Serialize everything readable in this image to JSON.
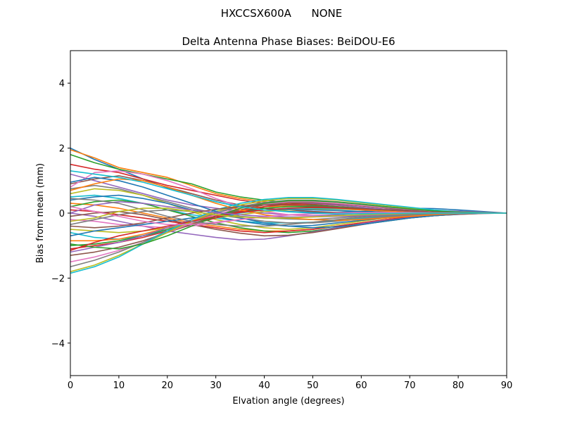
{
  "figure": {
    "suptitle": "HXCCSX600A      NONE"
  },
  "chart_data": {
    "type": "line",
    "title": "Delta Antenna Phase Biases: BeiDOU-E6",
    "xlabel": "Elvation angle (degrees)",
    "ylabel": "Bias from mean (mm)",
    "xlim": [
      0,
      90
    ],
    "ylim": [
      -5,
      5
    ],
    "xticks": [
      0,
      10,
      20,
      30,
      40,
      50,
      60,
      70,
      80,
      90
    ],
    "xtick_labels": [
      "0",
      "10",
      "20",
      "30",
      "40",
      "50",
      "60",
      "70",
      "80",
      "90"
    ],
    "yticks": [
      -4,
      -2,
      0,
      2,
      4
    ],
    "ytick_labels": [
      "−4",
      "−2",
      "0",
      "2",
      "4"
    ],
    "grid": false,
    "legend": "none",
    "colors": [
      "#1f77b4",
      "#ff7f0e",
      "#2ca02c",
      "#d62728",
      "#9467bd",
      "#8c564b",
      "#e377c2",
      "#7f7f7f",
      "#bcbd22",
      "#17becf"
    ],
    "x": [
      0,
      5,
      10,
      15,
      20,
      25,
      30,
      35,
      40,
      45,
      50,
      55,
      60,
      65,
      70,
      75,
      80,
      85,
      90
    ],
    "series": [
      {
        "values": [
          2.0,
          1.65,
          1.35,
          1.05,
          0.78,
          0.55,
          0.35,
          0.2,
          0.1,
          0.05,
          0.02,
          0.02,
          0.05,
          0.1,
          0.15,
          0.14,
          0.1,
          0.05,
          0.0
        ]
      },
      {
        "values": [
          1.95,
          1.7,
          1.4,
          1.25,
          1.1,
          0.85,
          0.6,
          0.45,
          0.35,
          0.28,
          0.22,
          0.18,
          0.15,
          0.12,
          0.1,
          0.08,
          0.05,
          0.02,
          0.0
        ]
      },
      {
        "values": [
          1.8,
          1.55,
          1.35,
          1.2,
          1.05,
          0.9,
          0.65,
          0.5,
          0.4,
          0.32,
          0.25,
          0.2,
          0.15,
          0.12,
          0.1,
          0.08,
          0.05,
          0.02,
          0.0
        ]
      },
      {
        "values": [
          1.5,
          1.35,
          1.25,
          1.05,
          0.85,
          0.7,
          0.55,
          0.4,
          0.3,
          0.25,
          0.2,
          0.15,
          0.12,
          0.1,
          0.08,
          0.06,
          0.04,
          0.02,
          0.0
        ]
      },
      {
        "values": [
          1.2,
          1.0,
          0.8,
          0.6,
          0.4,
          0.25,
          0.15,
          0.05,
          0.0,
          -0.05,
          -0.08,
          -0.05,
          0.0,
          0.05,
          0.08,
          0.08,
          0.06,
          0.03,
          0.0
        ]
      },
      {
        "values": [
          0.9,
          1.05,
          1.15,
          1.0,
          0.8,
          0.6,
          0.4,
          0.25,
          0.15,
          0.1,
          0.05,
          0.02,
          0.0,
          0.02,
          0.05,
          0.05,
          0.04,
          0.02,
          0.0
        ]
      },
      {
        "values": [
          0.8,
          1.25,
          1.3,
          1.2,
          1.0,
          0.75,
          0.45,
          0.2,
          0.05,
          -0.05,
          -0.1,
          -0.1,
          -0.08,
          -0.05,
          -0.02,
          0.0,
          0.0,
          0.0,
          0.0
        ]
      },
      {
        "values": [
          0.75,
          0.85,
          0.75,
          0.55,
          0.35,
          0.15,
          0.0,
          -0.1,
          -0.15,
          -0.18,
          -0.2,
          -0.15,
          -0.1,
          -0.05,
          0.0,
          0.02,
          0.02,
          0.01,
          0.0
        ]
      },
      {
        "values": [
          0.6,
          0.75,
          0.7,
          0.55,
          0.3,
          0.05,
          -0.2,
          -0.35,
          -0.45,
          -0.5,
          -0.45,
          -0.35,
          -0.25,
          -0.15,
          -0.08,
          -0.04,
          -0.02,
          0.0,
          0.0
        ]
      },
      {
        "values": [
          0.5,
          0.55,
          0.45,
          0.3,
          0.1,
          -0.05,
          -0.15,
          -0.25,
          -0.3,
          -0.3,
          -0.28,
          -0.22,
          -0.15,
          -0.1,
          -0.05,
          -0.02,
          0.0,
          0.0,
          0.0
        ]
      },
      {
        "values": [
          0.4,
          0.5,
          0.55,
          0.45,
          0.3,
          0.1,
          -0.1,
          -0.25,
          -0.35,
          -0.4,
          -0.38,
          -0.3,
          -0.22,
          -0.15,
          -0.1,
          -0.05,
          -0.02,
          0.0,
          0.0
        ]
      },
      {
        "values": [
          0.3,
          0.25,
          0.15,
          0.0,
          -0.15,
          -0.3,
          -0.4,
          -0.5,
          -0.55,
          -0.55,
          -0.5,
          -0.4,
          -0.3,
          -0.2,
          -0.12,
          -0.06,
          -0.03,
          0.0,
          0.0
        ]
      },
      {
        "values": [
          0.2,
          0.35,
          0.4,
          0.3,
          0.1,
          -0.1,
          -0.3,
          -0.45,
          -0.55,
          -0.6,
          -0.55,
          -0.45,
          -0.35,
          -0.25,
          -0.15,
          -0.08,
          -0.03,
          0.0,
          0.0
        ]
      },
      {
        "values": [
          0.1,
          0.05,
          -0.05,
          -0.15,
          -0.25,
          -0.35,
          -0.45,
          -0.55,
          -0.6,
          -0.55,
          -0.5,
          -0.4,
          -0.3,
          -0.2,
          -0.12,
          -0.06,
          -0.02,
          0.0,
          0.0
        ]
      },
      {
        "values": [
          0.0,
          -0.1,
          -0.25,
          -0.4,
          -0.55,
          -0.65,
          -0.75,
          -0.82,
          -0.8,
          -0.7,
          -0.58,
          -0.45,
          -0.33,
          -0.22,
          -0.14,
          -0.08,
          -0.04,
          -0.01,
          0.0
        ]
      },
      {
        "values": [
          -0.1,
          0.0,
          0.05,
          -0.05,
          -0.2,
          -0.35,
          -0.5,
          -0.62,
          -0.7,
          -0.68,
          -0.6,
          -0.48,
          -0.36,
          -0.24,
          -0.15,
          -0.08,
          -0.04,
          -0.01,
          0.0
        ]
      },
      {
        "values": [
          -0.2,
          -0.25,
          -0.35,
          -0.4,
          -0.45,
          -0.4,
          -0.3,
          -0.2,
          -0.1,
          -0.05,
          -0.02,
          0.0,
          0.02,
          0.03,
          0.03,
          0.02,
          0.01,
          0.0,
          0.0
        ]
      },
      {
        "values": [
          -0.35,
          -0.2,
          -0.05,
          0.05,
          0.1,
          0.05,
          -0.05,
          -0.15,
          -0.25,
          -0.3,
          -0.3,
          -0.25,
          -0.18,
          -0.12,
          -0.07,
          -0.04,
          -0.02,
          0.0,
          0.0
        ]
      },
      {
        "values": [
          -0.5,
          -0.55,
          -0.6,
          -0.55,
          -0.45,
          -0.3,
          -0.15,
          -0.05,
          0.05,
          0.1,
          0.12,
          0.12,
          0.1,
          0.08,
          0.05,
          0.03,
          0.01,
          0.0,
          0.0
        ]
      },
      {
        "values": [
          -0.6,
          -0.75,
          -0.8,
          -0.7,
          -0.55,
          -0.35,
          -0.15,
          0.0,
          0.1,
          0.15,
          0.15,
          0.13,
          0.1,
          0.08,
          0.06,
          0.04,
          0.02,
          0.01,
          0.0
        ]
      },
      {
        "values": [
          -0.7,
          -0.55,
          -0.45,
          -0.35,
          -0.25,
          -0.15,
          -0.05,
          0.05,
          0.1,
          0.12,
          0.1,
          0.08,
          0.05,
          0.03,
          0.01,
          0.0,
          0.0,
          0.0,
          0.0
        ]
      },
      {
        "values": [
          -0.85,
          -0.85,
          -0.8,
          -0.65,
          -0.45,
          -0.25,
          -0.05,
          0.1,
          0.2,
          0.22,
          0.2,
          0.15,
          0.1,
          0.06,
          0.03,
          0.01,
          0.0,
          0.0,
          0.0
        ]
      },
      {
        "values": [
          -1.0,
          -0.95,
          -0.85,
          -0.7,
          -0.5,
          -0.3,
          -0.1,
          0.05,
          0.15,
          0.2,
          0.2,
          0.18,
          0.14,
          0.1,
          0.06,
          0.03,
          0.01,
          0.0,
          0.0
        ]
      },
      {
        "values": [
          -1.1,
          -1.0,
          -0.9,
          -0.75,
          -0.55,
          -0.35,
          -0.15,
          0.05,
          0.2,
          0.28,
          0.28,
          0.24,
          0.18,
          0.12,
          0.07,
          0.04,
          0.02,
          0.0,
          0.0
        ]
      },
      {
        "values": [
          -1.2,
          -1.05,
          -0.9,
          -0.7,
          -0.45,
          -0.2,
          0.05,
          0.2,
          0.3,
          0.33,
          0.3,
          0.25,
          0.18,
          0.12,
          0.07,
          0.04,
          0.02,
          0.0,
          0.0
        ]
      },
      {
        "values": [
          -1.3,
          -1.2,
          -1.05,
          -0.85,
          -0.6,
          -0.35,
          -0.1,
          0.1,
          0.25,
          0.32,
          0.32,
          0.28,
          0.22,
          0.16,
          0.1,
          0.05,
          0.02,
          0.0,
          0.0
        ]
      },
      {
        "values": [
          -1.5,
          -1.35,
          -1.15,
          -0.9,
          -0.6,
          -0.3,
          -0.05,
          0.15,
          0.28,
          0.35,
          0.35,
          0.3,
          0.24,
          0.18,
          0.12,
          0.06,
          0.02,
          0.0,
          0.0
        ]
      },
      {
        "values": [
          -1.65,
          -1.45,
          -1.2,
          -0.9,
          -0.55,
          -0.25,
          0.0,
          0.2,
          0.33,
          0.4,
          0.4,
          0.35,
          0.28,
          0.2,
          0.13,
          0.07,
          0.03,
          0.0,
          0.0
        ]
      },
      {
        "values": [
          -1.8,
          -1.6,
          -1.3,
          -0.95,
          -0.6,
          -0.25,
          0.05,
          0.25,
          0.38,
          0.45,
          0.45,
          0.4,
          0.32,
          0.24,
          0.16,
          0.09,
          0.04,
          0.01,
          0.0
        ]
      },
      {
        "values": [
          -1.85,
          -1.65,
          -1.35,
          -0.95,
          -0.55,
          -0.2,
          0.1,
          0.3,
          0.42,
          0.48,
          0.48,
          0.42,
          0.34,
          0.26,
          0.18,
          0.1,
          0.04,
          0.01,
          0.0
        ]
      },
      {
        "values": [
          0.95,
          1.1,
          1.0,
          0.8,
          0.55,
          0.3,
          0.05,
          -0.15,
          -0.3,
          -0.4,
          -0.45,
          -0.42,
          -0.35,
          -0.25,
          -0.15,
          -0.08,
          -0.03,
          0.0,
          0.0
        ]
      },
      {
        "values": [
          0.7,
          0.9,
          1.05,
          1.0,
          0.8,
          0.55,
          0.3,
          0.1,
          -0.05,
          -0.15,
          -0.2,
          -0.22,
          -0.2,
          -0.15,
          -0.1,
          -0.05,
          -0.02,
          0.0,
          0.0
        ]
      },
      {
        "values": [
          -0.95,
          -1.05,
          -1.1,
          -0.95,
          -0.7,
          -0.4,
          -0.1,
          0.15,
          0.3,
          0.38,
          0.38,
          0.34,
          0.27,
          0.2,
          0.13,
          0.07,
          0.03,
          0.0,
          0.0
        ]
      },
      {
        "values": [
          -1.15,
          -0.9,
          -0.7,
          -0.55,
          -0.4,
          -0.25,
          -0.1,
          0.02,
          0.1,
          0.15,
          0.17,
          0.16,
          0.13,
          0.1,
          0.06,
          0.03,
          0.01,
          0.0,
          0.0
        ]
      },
      {
        "values": [
          0.0,
          0.25,
          0.35,
          0.3,
          0.2,
          0.1,
          0.02,
          -0.05,
          -0.1,
          -0.12,
          -0.12,
          -0.1,
          -0.08,
          -0.05,
          -0.03,
          -0.02,
          -0.01,
          0.0,
          0.0
        ]
      },
      {
        "values": [
          -0.4,
          -0.45,
          -0.4,
          -0.3,
          -0.15,
          0.0,
          0.12,
          0.2,
          0.25,
          0.25,
          0.22,
          0.18,
          0.14,
          0.1,
          0.06,
          0.03,
          0.01,
          0.0,
          0.0
        ]
      },
      {
        "values": [
          0.2,
          0.05,
          -0.1,
          -0.25,
          -0.35,
          -0.35,
          -0.28,
          -0.2,
          -0.12,
          -0.06,
          -0.02,
          0.0,
          0.01,
          0.02,
          0.02,
          0.01,
          0.01,
          0.0,
          0.0
        ]
      },
      {
        "values": [
          0.45,
          0.4,
          0.3,
          0.1,
          -0.1,
          -0.25,
          -0.35,
          -0.4,
          -0.4,
          -0.35,
          -0.28,
          -0.2,
          -0.13,
          -0.08,
          -0.04,
          -0.02,
          -0.01,
          0.0,
          0.0
        ]
      },
      {
        "values": [
          -0.25,
          -0.15,
          0.05,
          0.15,
          0.15,
          0.05,
          -0.05,
          -0.12,
          -0.15,
          -0.15,
          -0.12,
          -0.08,
          -0.05,
          -0.03,
          -0.01,
          0.0,
          0.0,
          0.0,
          0.0
        ]
      },
      {
        "values": [
          1.3,
          1.2,
          1.1,
          0.95,
          0.75,
          0.55,
          0.35,
          0.2,
          0.1,
          0.04,
          0.0,
          -0.02,
          -0.02,
          -0.01,
          0.0,
          0.0,
          0.0,
          0.0,
          0.0
        ]
      }
    ]
  }
}
